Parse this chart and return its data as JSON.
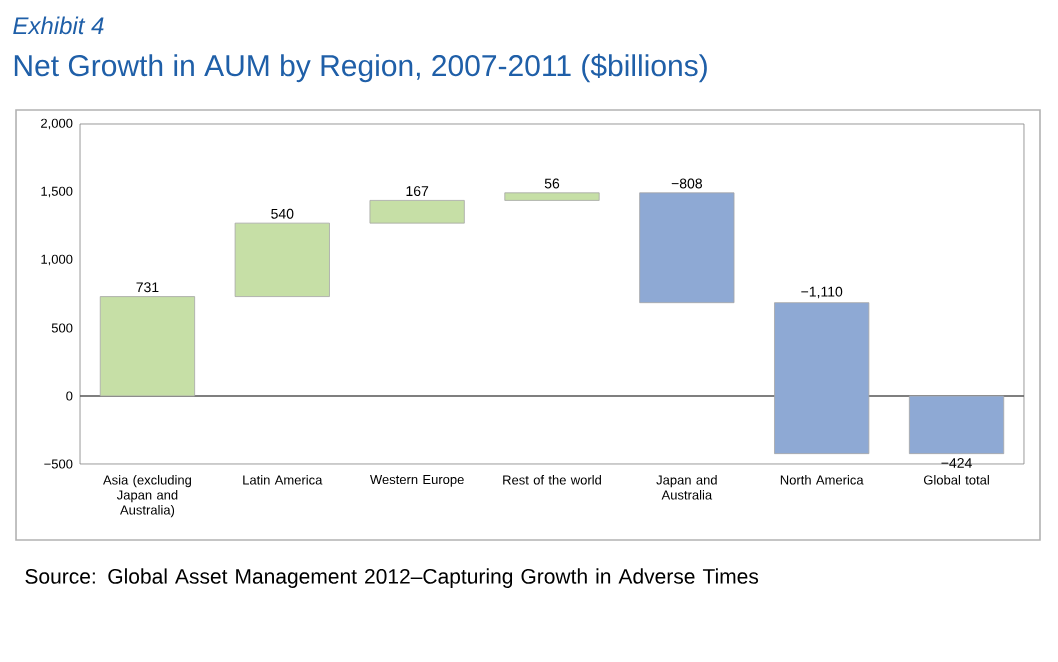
{
  "chart_data": {
    "type": "bar",
    "subtitle": "Exhibit 4",
    "title": "Net Growth in AUM by Region, 2007-2011 ($billions)",
    "categories": [
      "Asia (excluding Japan and Australia)",
      "Latin America",
      "Western Europe",
      "Rest of the world",
      "Japan and Australia",
      "North America",
      "Global total"
    ],
    "values": [
      731,
      540,
      167,
      56,
      -808,
      -1110,
      -424
    ],
    "base": [
      0,
      731,
      1271,
      1438,
      1494,
      686,
      0
    ],
    "value_labels": [
      "731",
      "540",
      "167",
      "56",
      "−808",
      "−1,110",
      "−424"
    ],
    "colors": [
      "#c6dfa6",
      "#c6dfa6",
      "#c6dfa6",
      "#c6dfa6",
      "#8ea9d4",
      "#8ea9d4",
      "#8ea9d4"
    ],
    "ylim": [
      -500,
      2000
    ],
    "yticks": [
      {
        "value": -500,
        "label": "−500"
      },
      0,
      500,
      {
        "value": 1000,
        "label": "1,000"
      },
      {
        "value": 1500,
        "label": "1,500"
      },
      {
        "value": 2000,
        "label": "2,000"
      }
    ],
    "ref_lines": [
      {
        "axis": "y",
        "value": 0,
        "color": "#555555"
      }
    ],
    "annotations": [
      "Source: Global Asset Management 2012–Capturing Growth in Adverse Times"
    ]
  }
}
